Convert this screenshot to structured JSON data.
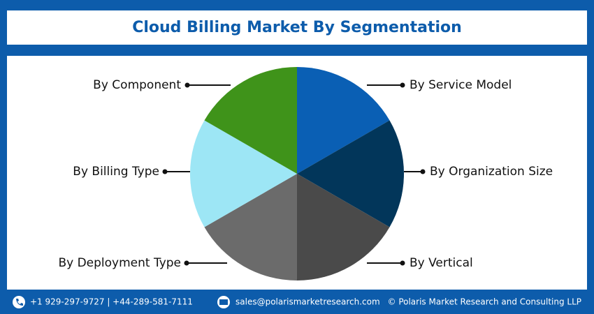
{
  "header": {
    "title": "Cloud Billing Market By Segmentation"
  },
  "segments": [
    {
      "label": "By Service Model"
    },
    {
      "label": "By Organization Size"
    },
    {
      "label": "By Vertical"
    },
    {
      "label": "By Deployment Type"
    },
    {
      "label": "By Billing Type"
    },
    {
      "label": "By Component"
    }
  ],
  "footer": {
    "phone": "+1 929-297-9727 | +44-289-581-7111",
    "email": "sales@polarismarketresearch.com",
    "copyright": "© Polaris Market Research and Consulting LLP"
  }
}
